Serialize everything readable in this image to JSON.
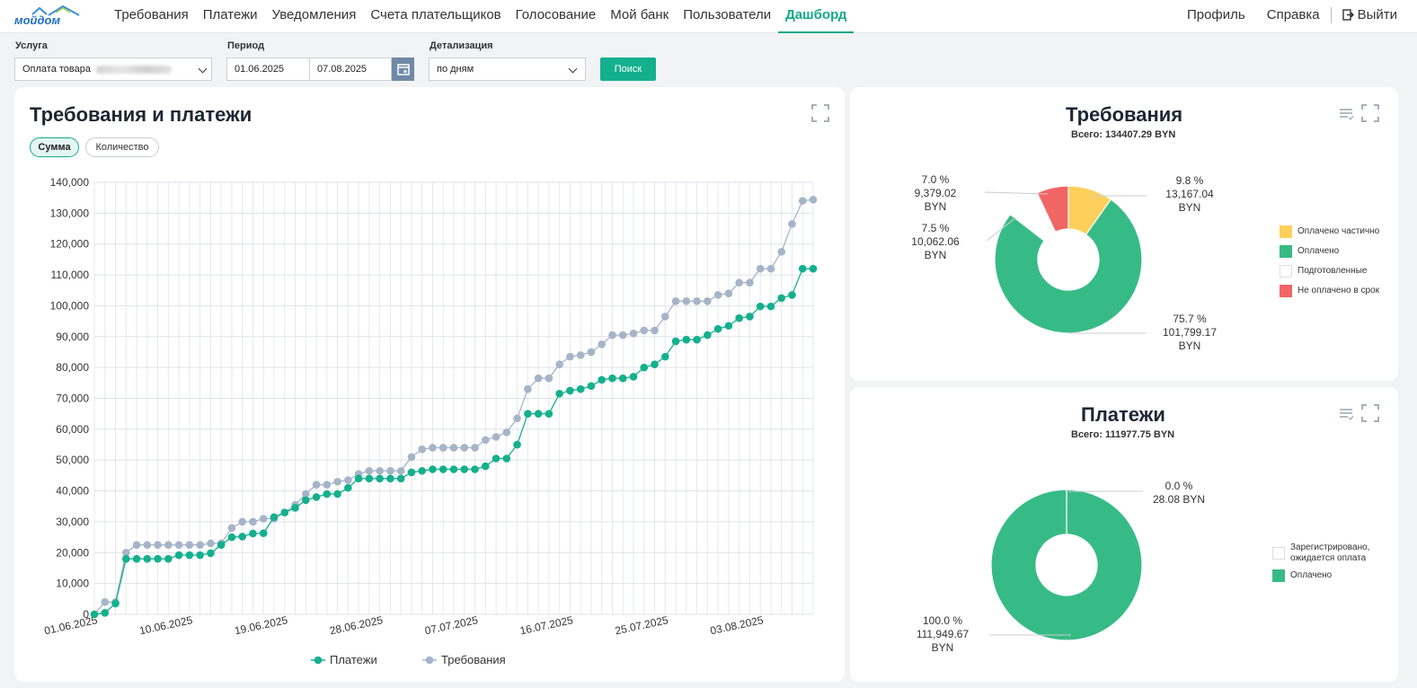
{
  "header": {
    "logo_text": "мойдом",
    "nav": [
      "Требования",
      "Платежи",
      "Уведомления",
      "Счета плательщиков",
      "Голосование",
      "Мой банк",
      "Пользователи",
      "Дашборд"
    ],
    "active_nav": "Дашборд",
    "profile": "Профиль",
    "help": "Справка",
    "logout": "Выйти"
  },
  "filters": {
    "service_label": "Услуга",
    "service_value": "Оплата товара",
    "period_label": "Период",
    "date_from": "01.06.2025",
    "date_to": "07.08.2025",
    "detail_label": "Детализация",
    "detail_value": "по дням",
    "search_button": "Поиск"
  },
  "main_chart": {
    "title": "Требования и платежи",
    "toggle_sum": "Сумма",
    "toggle_count": "Количество",
    "active_toggle": "Сумма"
  },
  "requirements_card": {
    "title": "Требования",
    "total": "Всего: 134407.29 BYN"
  },
  "payments_card": {
    "title": "Платежи",
    "total": "Всего: 111977.75 BYN"
  },
  "chart_data": [
    {
      "type": "line",
      "title": "Требования и платежи",
      "x_tick_labels": [
        "01.06.2025",
        "10.06.2025",
        "19.06.2025",
        "28.06.2025",
        "07.07.2025",
        "16.07.2025",
        "25.07.2025",
        "03.08.2025"
      ],
      "x_start": "01.06.2025",
      "x_end": "07.08.2025",
      "y_ticks": [
        "0",
        "10,000",
        "20,000",
        "30,000",
        "40,000",
        "50,000",
        "60,000",
        "70,000",
        "80,000",
        "90,000",
        "100,000",
        "110,000",
        "120,000",
        "130,000",
        "140,000"
      ],
      "ylim": [
        0,
        140000
      ],
      "grid": true,
      "legend_position": "bottom",
      "series": [
        {
          "name": "Платежи",
          "color": "#14b08e",
          "values": [
            0,
            500,
            3500,
            18000,
            18000,
            18000,
            18000,
            18000,
            19200,
            19200,
            19200,
            19800,
            22500,
            25000,
            25200,
            26200,
            26300,
            31500,
            33000,
            34500,
            37000,
            38000,
            39000,
            39000,
            41000,
            44000,
            44000,
            44000,
            44000,
            44000,
            46000,
            46500,
            47000,
            47000,
            47000,
            47000,
            47000,
            48000,
            50500,
            50500,
            55000,
            65000,
            65000,
            65000,
            71500,
            72500,
            73000,
            74000,
            76000,
            76500,
            76500,
            77000,
            80000,
            81000,
            83500,
            88500,
            89000,
            89000,
            90500,
            92500,
            93500,
            96000,
            96500,
            99800,
            99800,
            102500,
            103500,
            112000,
            112000
          ]
        },
        {
          "name": "Требования",
          "color": "#a6b4c8",
          "values": [
            0,
            4000,
            4000,
            20000,
            22500,
            22500,
            22500,
            22500,
            22500,
            22500,
            22500,
            23000,
            23000,
            28000,
            30000,
            30000,
            31000,
            31000,
            33000,
            35500,
            39000,
            42000,
            42000,
            43000,
            43500,
            45500,
            46500,
            46500,
            46500,
            46500,
            51000,
            53500,
            54000,
            54000,
            54000,
            54000,
            54000,
            56500,
            57500,
            59000,
            63500,
            73000,
            76500,
            76500,
            81000,
            83500,
            84000,
            85000,
            87500,
            90500,
            90500,
            91000,
            92000,
            92000,
            96500,
            101500,
            101500,
            101500,
            101500,
            103500,
            104000,
            107500,
            107500,
            112000,
            112000,
            117500,
            126500,
            134000,
            134400
          ]
        }
      ]
    },
    {
      "type": "pie",
      "title": "Требования",
      "labels": [
        "Оплачено частично",
        "Оплачено",
        "Подготовленные",
        "Не оплачено в срок"
      ],
      "colors": [
        "#fdd05c",
        "#37bb86",
        "#ffffff",
        "#f26565"
      ],
      "percent": [
        9.8,
        75.7,
        7.5,
        7.0
      ],
      "values": [
        13167.04,
        101799.17,
        10062.06,
        9379.02
      ],
      "slice_labels": [
        [
          "9.8 %",
          "13,167.04",
          "BYN"
        ],
        [
          "75.7 %",
          "101,799.17",
          "BYN"
        ],
        [
          "7.5 %",
          "10,062.06",
          "BYN"
        ],
        [
          "7.0 %",
          "9,379.02",
          "BYN"
        ]
      ],
      "legend_position": "right"
    },
    {
      "type": "pie",
      "title": "Платежи",
      "labels": [
        "Зарегистрировано, ожидается оплата",
        "Оплачено"
      ],
      "colors": [
        "#ffffff",
        "#37bb86"
      ],
      "percent": [
        0.0,
        100.0
      ],
      "values": [
        28.08,
        111949.67
      ],
      "slice_labels": [
        [
          "0.0 %",
          "28.08 BYN"
        ],
        [
          "100.0 %",
          "111,949.67",
          "BYN"
        ]
      ],
      "legend_position": "right"
    }
  ]
}
